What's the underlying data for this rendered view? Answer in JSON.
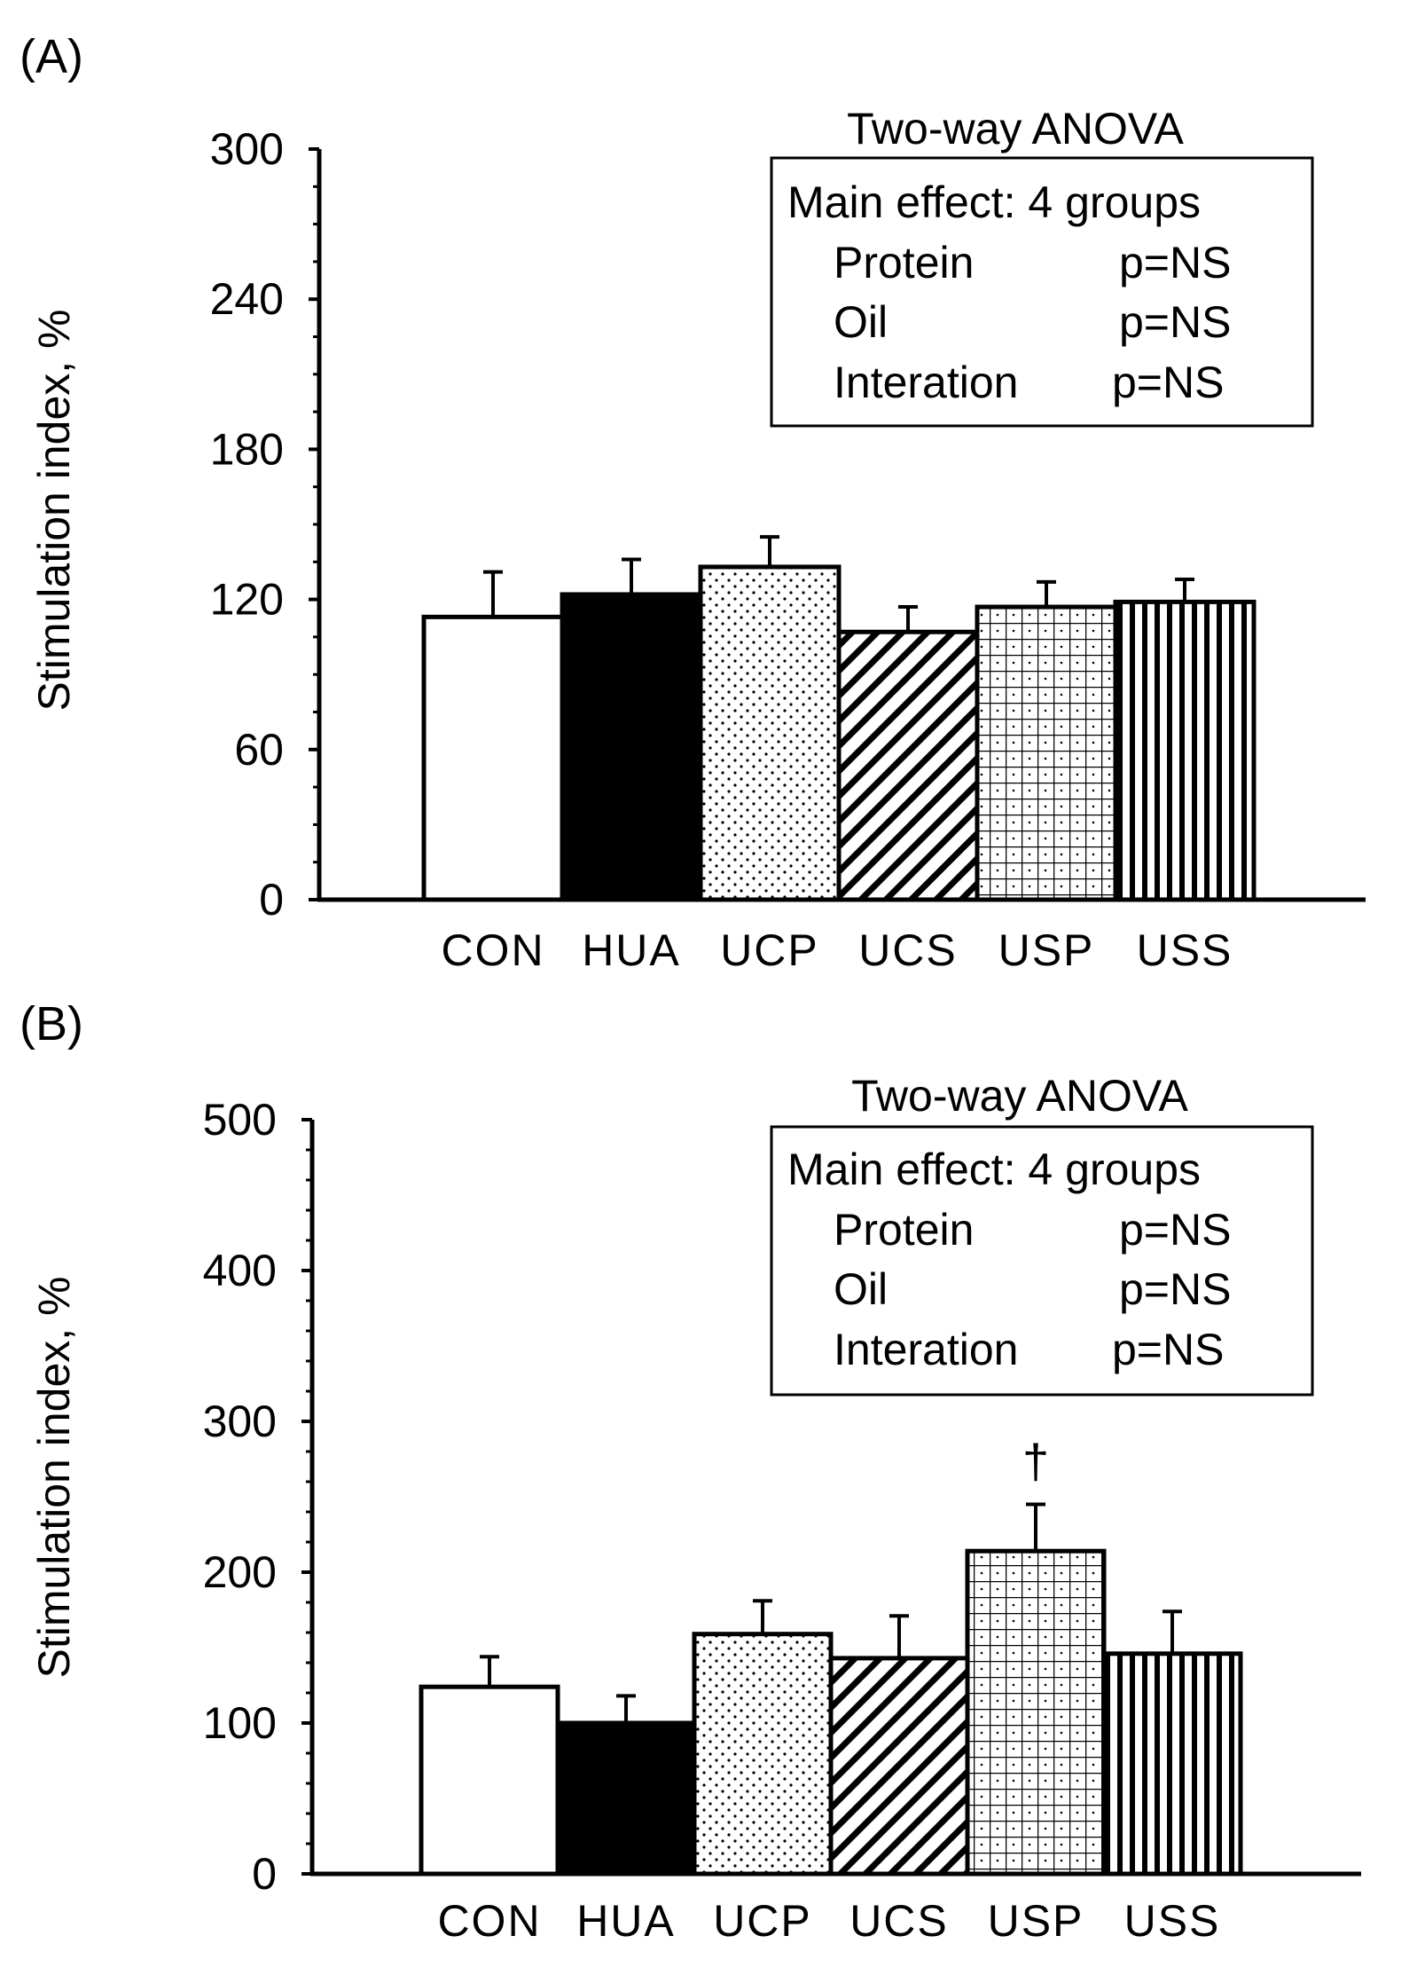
{
  "chart_data": [
    {
      "type": "bar",
      "panel_label": "(A)",
      "title": "",
      "xlabel": "",
      "ylabel": "Stimulation index, %",
      "ylim": [
        0,
        300
      ],
      "yticks": [
        0,
        60,
        120,
        180,
        240,
        300
      ],
      "grid": false,
      "categories": [
        "CON",
        "HUA",
        "UCP",
        "UCS",
        "USP",
        "USS"
      ],
      "values": [
        113,
        122,
        133,
        107,
        117,
        119
      ],
      "errors": [
        18,
        14,
        12,
        10,
        10,
        9
      ],
      "patterns": [
        "white",
        "black",
        "dots",
        "diagonal",
        "grid",
        "vertical"
      ],
      "annotations": [],
      "stats_box": {
        "title": "Two-way ANOVA",
        "header": "Main effect: 4 groups",
        "rows": [
          {
            "label": "Protein",
            "value": "p=NS"
          },
          {
            "label": "Oil",
            "value": "p=NS"
          },
          {
            "label": "Interation",
            "value": "p=NS"
          }
        ]
      }
    },
    {
      "type": "bar",
      "panel_label": "(B)",
      "title": "",
      "xlabel": "",
      "ylabel": "Stimulation index, %",
      "ylim": [
        0,
        500
      ],
      "yticks": [
        0,
        100,
        200,
        300,
        400,
        500
      ],
      "grid": false,
      "categories": [
        "CON",
        "HUA",
        "UCP",
        "UCS",
        "USP",
        "USS"
      ],
      "values": [
        124,
        100,
        159,
        143,
        214,
        146
      ],
      "errors": [
        20,
        18,
        22,
        28,
        31,
        28
      ],
      "patterns": [
        "white",
        "black",
        "dots",
        "diagonal",
        "grid",
        "vertical"
      ],
      "annotations": [
        {
          "category": "USP",
          "text": "†"
        }
      ],
      "stats_box": {
        "title": "Two-way ANOVA",
        "header": "Main effect: 4 groups",
        "rows": [
          {
            "label": "Protein",
            "value": "p=NS"
          },
          {
            "label": "Oil",
            "value": "p=NS"
          },
          {
            "label": "Interation",
            "value": "p=NS"
          }
        ]
      }
    }
  ]
}
